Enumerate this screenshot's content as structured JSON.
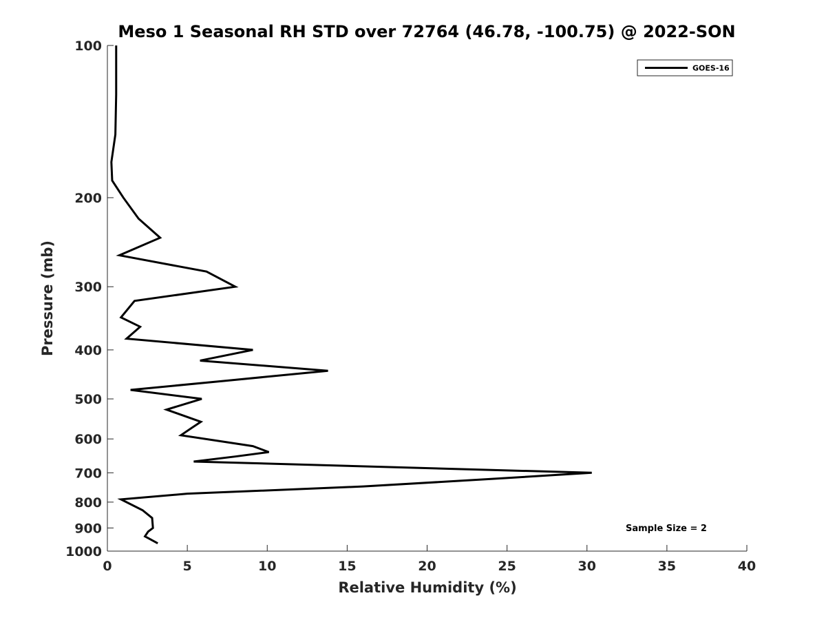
{
  "chart_data": {
    "type": "line",
    "title": "Meso 1 Seasonal RH STD over 72764 (46.78, -100.75) @ 2022-SON",
    "xlabel": "Relative Humidity (%)",
    "ylabel": "Pressure (mb)",
    "xlim": [
      0,
      40
    ],
    "ylim": [
      100,
      1000
    ],
    "y_scale": "log",
    "y_direction": "reversed",
    "x_ticks": [
      0,
      5,
      10,
      15,
      20,
      25,
      30,
      35,
      40
    ],
    "y_ticks": [
      100,
      200,
      300,
      400,
      500,
      600,
      700,
      800,
      900,
      1000
    ],
    "grid": false,
    "legend": {
      "placement": "top-right"
    },
    "annotation": "Sample Size = 2",
    "series": [
      {
        "name": "GOES-16",
        "color": "#000000",
        "points": [
          [
            0.55,
            100
          ],
          [
            0.55,
            125
          ],
          [
            0.5,
            150
          ],
          [
            0.25,
            170
          ],
          [
            0.3,
            185
          ],
          [
            1.0,
            200
          ],
          [
            1.95,
            220
          ],
          [
            3.3,
            240
          ],
          [
            0.75,
            260
          ],
          [
            6.2,
            280
          ],
          [
            8.0,
            300
          ],
          [
            1.7,
            320
          ],
          [
            0.85,
            345
          ],
          [
            2.05,
            360
          ],
          [
            1.2,
            380
          ],
          [
            9.1,
            400
          ],
          [
            5.8,
            420
          ],
          [
            13.8,
            440
          ],
          [
            7.5,
            460
          ],
          [
            1.45,
            480
          ],
          [
            5.9,
            500
          ],
          [
            3.7,
            525
          ],
          [
            5.85,
            555
          ],
          [
            5.3,
            570
          ],
          [
            4.6,
            590
          ],
          [
            9.1,
            620
          ],
          [
            10.1,
            637
          ],
          [
            8.0,
            650
          ],
          [
            5.4,
            665
          ],
          [
            30.3,
            700
          ],
          [
            24.0,
            720
          ],
          [
            16.0,
            745
          ],
          [
            5.0,
            770
          ],
          [
            0.85,
            790
          ],
          [
            2.2,
            830
          ],
          [
            2.8,
            860
          ],
          [
            2.85,
            900
          ],
          [
            2.55,
            915
          ],
          [
            2.35,
            935
          ],
          [
            3.15,
            965
          ]
        ]
      }
    ]
  }
}
